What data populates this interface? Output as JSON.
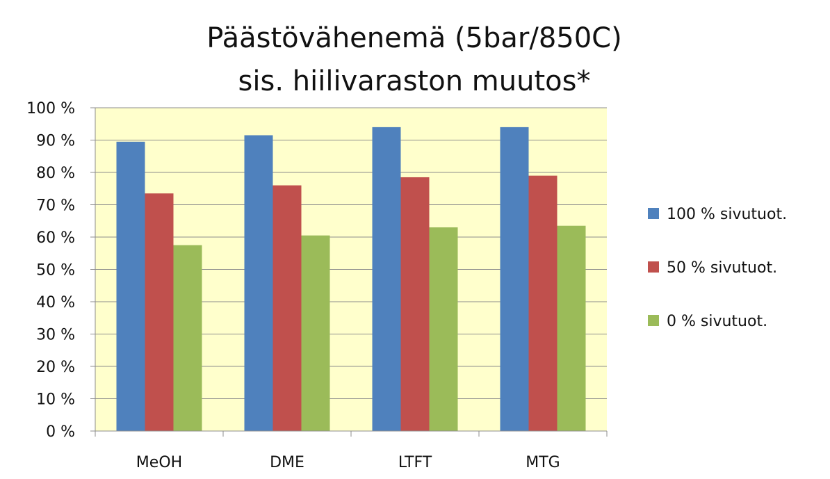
{
  "chart_data": {
    "type": "bar",
    "title": [
      "Päästövähenemä  (5bar/850C)",
      "sis. hiilivaraston muutos*"
    ],
    "xlabel": "",
    "ylabel": "",
    "categories": [
      "MeOH",
      "DME",
      "LTFT",
      "MTG"
    ],
    "y_ticks": [
      "0 %",
      "10 %",
      "20 %",
      "30 %",
      "40 %",
      "50 %",
      "60 %",
      "70 %",
      "80 %",
      "90 %",
      "100 %"
    ],
    "ylim": [
      0,
      100
    ],
    "grid": true,
    "legend_position": "right",
    "plot_background": "#FFFFCC",
    "series": [
      {
        "name": "100 % sivutuot.",
        "color": "#4F81BD",
        "values": [
          89.5,
          91.5,
          94,
          94
        ]
      },
      {
        "name": "50 % sivutuot.",
        "color": "#C0504D",
        "values": [
          73.5,
          76,
          78.5,
          79
        ]
      },
      {
        "name": "0 % sivutuot.",
        "color": "#9BBB59",
        "values": [
          57.5,
          60.5,
          63,
          63.5
        ]
      }
    ]
  }
}
